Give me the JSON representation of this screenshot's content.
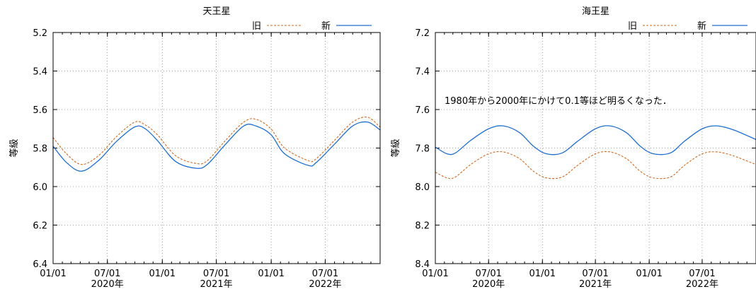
{
  "colors": {
    "old": "#d2691e",
    "new": "#1f6fd1"
  },
  "chart_data": [
    {
      "type": "line",
      "title": "天王星",
      "ylabel": "等級",
      "ylim": [
        5.2,
        6.4
      ],
      "y_inverted": true,
      "yticks": [
        "5.2",
        "5.4",
        "5.6",
        "5.8",
        "6.0",
        "6.2",
        "6.4"
      ],
      "xlim": [
        "2020-01-01",
        "2022-12-31"
      ],
      "xticks": [
        {
          "label": "01/01",
          "year": ""
        },
        {
          "label": "07/01",
          "year": "2020年"
        },
        {
          "label": "01/01",
          "year": ""
        },
        {
          "label": "07/01",
          "year": "2021年"
        },
        {
          "label": "01/01",
          "year": ""
        },
        {
          "label": "07/01",
          "year": "2022年"
        }
      ],
      "grid": true,
      "legend_position": "top-right",
      "annotation": "",
      "series": [
        {
          "name": "旧",
          "style": "dashed",
          "x": [
            "2020-01-01",
            "2020-02-15",
            "2020-04-05",
            "2020-06-01",
            "2020-08-01",
            "2020-10-01",
            "2020-11-05",
            "2020-12-15",
            "2021-02-15",
            "2021-04-25",
            "2021-06-01",
            "2021-08-01",
            "2021-10-01",
            "2021-11-10",
            "2021-12-31",
            "2022-02-15",
            "2022-05-05",
            "2022-06-01",
            "2022-08-01",
            "2022-10-01",
            "2022-11-20",
            "2022-12-31"
          ],
          "y": [
            5.745,
            5.83,
            5.885,
            5.84,
            5.74,
            5.665,
            5.68,
            5.73,
            5.84,
            5.88,
            5.865,
            5.76,
            5.665,
            5.65,
            5.7,
            5.8,
            5.865,
            5.855,
            5.76,
            5.665,
            5.64,
            5.69
          ]
        },
        {
          "name": "新",
          "style": "solid",
          "x": [
            "2020-01-01",
            "2020-02-15",
            "2020-04-05",
            "2020-06-01",
            "2020-08-01",
            "2020-10-01",
            "2020-11-05",
            "2020-12-15",
            "2021-02-15",
            "2021-04-25",
            "2021-06-01",
            "2021-08-01",
            "2021-10-01",
            "2021-11-10",
            "2021-12-31",
            "2022-02-15",
            "2022-05-05",
            "2022-06-01",
            "2022-08-01",
            "2022-10-01",
            "2022-11-20",
            "2022-12-31"
          ],
          "y": [
            5.79,
            5.875,
            5.92,
            5.865,
            5.765,
            5.69,
            5.7,
            5.76,
            5.87,
            5.905,
            5.885,
            5.78,
            5.685,
            5.685,
            5.73,
            5.83,
            5.89,
            5.875,
            5.78,
            5.685,
            5.665,
            5.705
          ]
        }
      ]
    },
    {
      "type": "line",
      "title": "海王星",
      "ylabel": "等級",
      "ylim": [
        7.2,
        8.4
      ],
      "y_inverted": true,
      "yticks": [
        "7.2",
        "7.4",
        "7.6",
        "7.8",
        "8.0",
        "8.2",
        "8.4"
      ],
      "xlim": [
        "2020-01-01",
        "2022-12-31"
      ],
      "xticks": [
        {
          "label": "01/01",
          "year": ""
        },
        {
          "label": "07/01",
          "year": "2020年"
        },
        {
          "label": "01/01",
          "year": ""
        },
        {
          "label": "07/01",
          "year": "2021年"
        },
        {
          "label": "01/01",
          "year": ""
        },
        {
          "label": "07/01",
          "year": "2022年"
        }
      ],
      "grid": true,
      "legend_position": "top-right",
      "annotation": "1980年から2000年にかけて0.1等ほど明るくなった．",
      "series": [
        {
          "name": "旧",
          "style": "dashed",
          "x": [
            "2020-01-01",
            "2020-02-10",
            "2020-03-10",
            "2020-05-01",
            "2020-07-01",
            "2020-08-20",
            "2020-10-15",
            "2020-12-01",
            "2021-01-15",
            "2021-03-10",
            "2021-05-01",
            "2021-07-01",
            "2021-08-20",
            "2021-10-15",
            "2021-12-01",
            "2022-01-15",
            "2022-03-15",
            "2022-05-01",
            "2022-07-01",
            "2022-08-20",
            "2022-10-15",
            "2022-12-31"
          ],
          "y": [
            7.925,
            7.955,
            7.95,
            7.885,
            7.83,
            7.82,
            7.855,
            7.92,
            7.955,
            7.95,
            7.89,
            7.83,
            7.82,
            7.855,
            7.92,
            7.955,
            7.95,
            7.89,
            7.83,
            7.82,
            7.84,
            7.885
          ]
        },
        {
          "name": "新",
          "style": "solid",
          "x": [
            "2020-01-01",
            "2020-02-10",
            "2020-03-10",
            "2020-05-01",
            "2020-07-01",
            "2020-08-20",
            "2020-10-15",
            "2020-12-01",
            "2021-01-15",
            "2021-03-10",
            "2021-05-01",
            "2021-07-01",
            "2021-08-20",
            "2021-10-15",
            "2021-12-01",
            "2022-01-15",
            "2022-03-15",
            "2022-05-01",
            "2022-07-01",
            "2022-08-20",
            "2022-10-15",
            "2022-12-31"
          ],
          "y": [
            7.795,
            7.83,
            7.825,
            7.76,
            7.7,
            7.685,
            7.72,
            7.79,
            7.83,
            7.825,
            7.765,
            7.7,
            7.685,
            7.72,
            7.79,
            7.83,
            7.825,
            7.765,
            7.7,
            7.685,
            7.705,
            7.755
          ]
        }
      ]
    }
  ]
}
